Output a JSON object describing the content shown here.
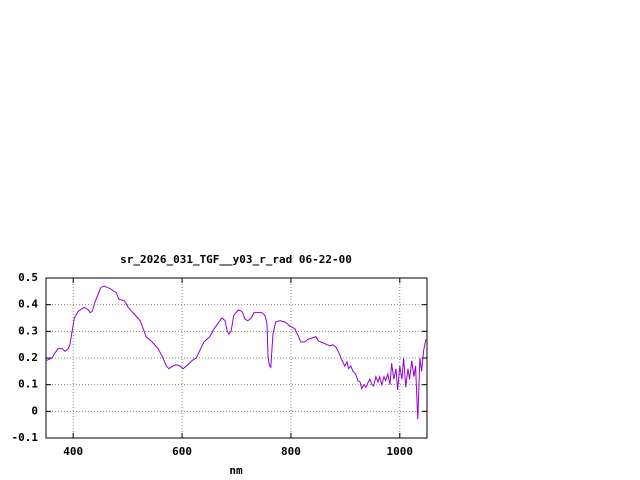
{
  "chart_data": {
    "type": "line",
    "title": "sr_2026_031_TGF__y03_r_rad 06-22-00",
    "x_label": "nm",
    "xlim": [
      350,
      1050
    ],
    "xticks": [
      400,
      600,
      800,
      1000
    ],
    "ylim": [
      -0.1,
      0.5
    ],
    "yticks": [
      -0.1,
      0,
      0.1,
      0.2,
      0.3,
      0.4,
      0.5
    ],
    "grid": true,
    "x": [
      350,
      361,
      367,
      372,
      380,
      385,
      391,
      394,
      398,
      402,
      409,
      420,
      428,
      431,
      435,
      440,
      446,
      451,
      457,
      468,
      479,
      484,
      494,
      501,
      512,
      523,
      534,
      545,
      556,
      565,
      571,
      576,
      583,
      589,
      596,
      602,
      611,
      618,
      626,
      633,
      640,
      651,
      659,
      666,
      673,
      679,
      683,
      686,
      690,
      695,
      703,
      710,
      716,
      721,
      727,
      732,
      739,
      747,
      752,
      756,
      758,
      761,
      763,
      767,
      772,
      780,
      789,
      798,
      807,
      813,
      818,
      826,
      831,
      839,
      846,
      850,
      855,
      861,
      866,
      872,
      877,
      883,
      888,
      894,
      899,
      903,
      906,
      910,
      914,
      919,
      923,
      927,
      930,
      934,
      938,
      941,
      945,
      949,
      952,
      956,
      960,
      963,
      967,
      971,
      974,
      978,
      982,
      985,
      989,
      993,
      996,
      1000,
      1004,
      1007,
      1011,
      1015,
      1018,
      1022,
      1026,
      1029,
      1033,
      1037,
      1040,
      1044,
      1048
    ],
    "series": [
      {
        "color": "#9400d3",
        "values": [
          0.19,
          0.2,
          0.22,
          0.235,
          0.235,
          0.225,
          0.235,
          0.25,
          0.3,
          0.35,
          0.375,
          0.39,
          0.38,
          0.37,
          0.375,
          0.41,
          0.44,
          0.465,
          0.47,
          0.46,
          0.445,
          0.42,
          0.415,
          0.39,
          0.365,
          0.34,
          0.28,
          0.26,
          0.235,
          0.2,
          0.17,
          0.16,
          0.17,
          0.175,
          0.17,
          0.16,
          0.175,
          0.19,
          0.2,
          0.23,
          0.26,
          0.28,
          0.31,
          0.33,
          0.35,
          0.34,
          0.3,
          0.29,
          0.3,
          0.36,
          0.38,
          0.375,
          0.345,
          0.34,
          0.35,
          0.37,
          0.37,
          0.37,
          0.36,
          0.33,
          0.2,
          0.17,
          0.165,
          0.29,
          0.335,
          0.34,
          0.335,
          0.32,
          0.31,
          0.285,
          0.26,
          0.26,
          0.27,
          0.275,
          0.28,
          0.265,
          0.26,
          0.255,
          0.25,
          0.245,
          0.25,
          0.24,
          0.22,
          0.19,
          0.17,
          0.185,
          0.16,
          0.17,
          0.15,
          0.14,
          0.115,
          0.11,
          0.085,
          0.1,
          0.09,
          0.105,
          0.12,
          0.1,
          0.095,
          0.13,
          0.11,
          0.13,
          0.1,
          0.13,
          0.115,
          0.14,
          0.1,
          0.18,
          0.12,
          0.16,
          0.08,
          0.17,
          0.12,
          0.2,
          0.09,
          0.16,
          0.12,
          0.19,
          0.13,
          0.17,
          -0.03,
          0.2,
          0.15,
          0.23,
          0.27
        ]
      }
    ]
  }
}
